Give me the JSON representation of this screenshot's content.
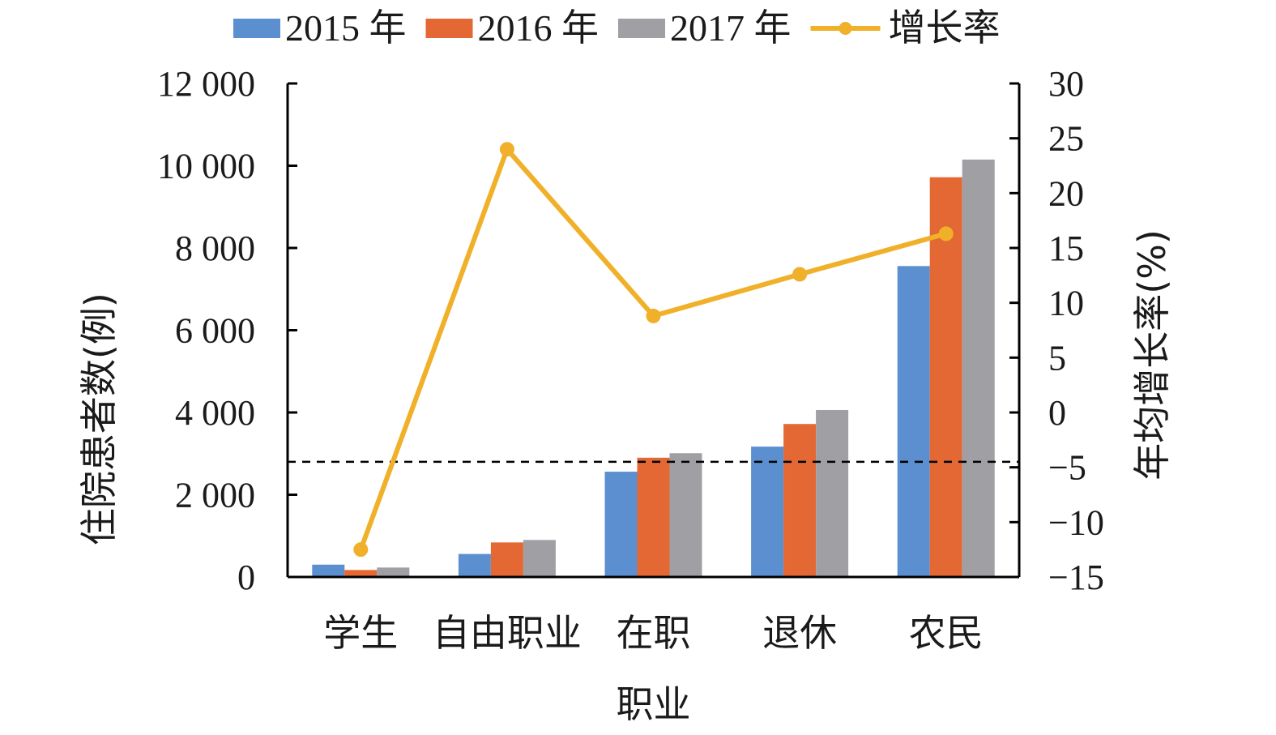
{
  "chart_data": {
    "type": "bar",
    "categories": [
      "学生",
      "自由职业",
      "在职",
      "退休",
      "农民"
    ],
    "series": [
      {
        "name": "2015 年",
        "type": "bar",
        "axis": "left",
        "color": "#5b8fcf",
        "values": [
          300,
          560,
          2560,
          3170,
          7560
        ]
      },
      {
        "name": "2016 年",
        "type": "bar",
        "axis": "left",
        "color": "#e36834",
        "values": [
          170,
          840,
          2900,
          3720,
          9720
        ]
      },
      {
        "name": "2017 年",
        "type": "bar",
        "axis": "left",
        "color": "#a0a0a4",
        "values": [
          230,
          900,
          3010,
          4060,
          10150
        ]
      },
      {
        "name": "增长率",
        "type": "line",
        "axis": "right",
        "color": "#f0b02a",
        "values": [
          -12.5,
          24.0,
          8.8,
          12.6,
          16.3
        ]
      }
    ],
    "xlabel": "职业",
    "ylabel": "住院患者数(例)",
    "y2label": "年均增长率(%)",
    "ylim": [
      0,
      12000
    ],
    "yticks": [
      "0",
      "2 000",
      "4 000",
      "6 000",
      "8 000",
      "10 000",
      "12 000"
    ],
    "y2lim": [
      -15,
      30
    ],
    "y2ticks": [
      "−15",
      "−10",
      "−5",
      "0",
      "5",
      "10",
      "15",
      "20",
      "25",
      "30"
    ],
    "reference_line": {
      "axis": "right",
      "value": -4.5,
      "style": "dashed"
    },
    "grid": false,
    "legend": "top"
  }
}
